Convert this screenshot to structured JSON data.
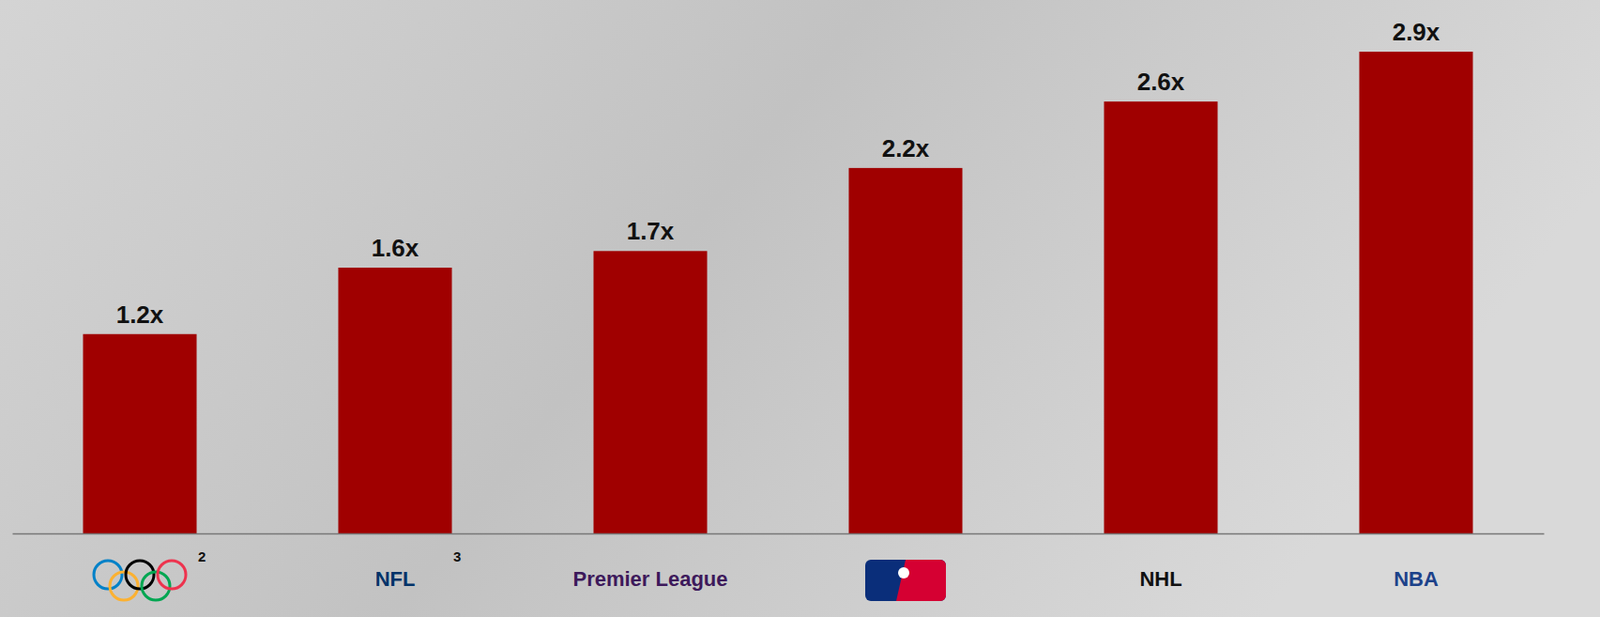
{
  "chart_data": {
    "type": "bar",
    "categories": [
      null,
      "NFL",
      "Premier League",
      null,
      "NHL",
      "NBA"
    ],
    "values": [
      1.2,
      1.6,
      1.7,
      2.2,
      2.6,
      2.9
    ],
    "value_labels": [
      "1.2x",
      "1.6x",
      "1.7x",
      "2.2x",
      "2.6x",
      "2.9x"
    ],
    "color": "#a00000",
    "ylim": [
      0,
      3.2
    ],
    "data_labels": true,
    "tick_labels": "x",
    "annotations": [
      {
        "text": "2",
        "category": 0
      },
      {
        "text": "3",
        "category": 1
      }
    ]
  }
}
